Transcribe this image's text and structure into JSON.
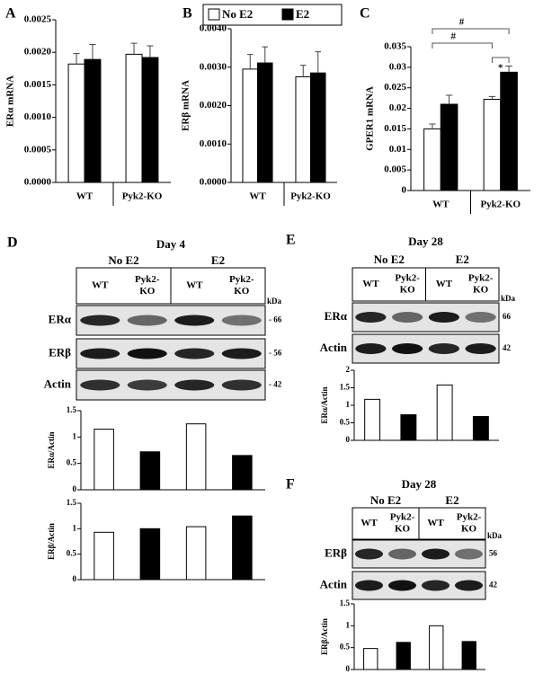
{
  "chart_data": [
    {
      "type": "bar",
      "panel": "A",
      "ylabel": "ERα mRNA",
      "categories": [
        "WT",
        "Pyk2-KO"
      ],
      "series": [
        {
          "color": "#ffffff",
          "values": [
            0.00182,
            0.00197
          ],
          "errors": [
            0.00016,
            0.00017
          ]
        },
        {
          "color": "#000000",
          "values": [
            0.00189,
            0.00192
          ],
          "errors": [
            0.00023,
            0.00018
          ]
        }
      ],
      "ylim": [
        0,
        0.0025
      ],
      "yticks": [
        {
          "value": 0,
          "label": "0.0000"
        },
        0.0005,
        {
          "value": 0.001,
          "label": "0.0010"
        },
        0.0015,
        {
          "value": 0.002,
          "label": "0.0020"
        },
        0.0025
      ]
    },
    {
      "type": "bar",
      "panel": "B",
      "ylabel": "ERβ mRNA",
      "categories": [
        "WT",
        "Pyk2-KO"
      ],
      "legend": "top",
      "series": [
        {
          "name": "No E2",
          "color": "#ffffff",
          "values": [
            0.00295,
            0.00275
          ],
          "errors": [
            0.00038,
            0.0003
          ]
        },
        {
          "name": "E2",
          "color": "#000000",
          "values": [
            0.00311,
            0.00285
          ],
          "errors": [
            0.00042,
            0.00055
          ]
        }
      ],
      "ylim": [
        0,
        0.004
      ],
      "yticks": [
        {
          "value": 0,
          "label": "0.0000"
        },
        {
          "value": 0.001,
          "label": "0.0010"
        },
        {
          "value": 0.002,
          "label": "0.0020"
        },
        {
          "value": 0.003,
          "label": "0.0030"
        },
        {
          "value": 0.004,
          "label": "0.0040"
        }
      ]
    },
    {
      "type": "bar",
      "panel": "C",
      "ylabel": "GPER1 mRNA",
      "categories": [
        "WT",
        "Pyk2-KO"
      ],
      "annotations": [
        "#",
        "#",
        "*"
      ],
      "series": [
        {
          "color": "#ffffff",
          "values": [
            0.015,
            0.0222
          ],
          "errors": [
            0.0012,
            0.0007
          ]
        },
        {
          "color": "#000000",
          "values": [
            0.021,
            0.0288
          ],
          "errors": [
            0.0022,
            0.0015
          ]
        }
      ],
      "ylim": [
        0,
        0.035
      ],
      "yticks": [
        0,
        0.005,
        0.01,
        0.015,
        0.02,
        0.025,
        0.03,
        0.035
      ]
    },
    {
      "type": "bar",
      "ylabel": "ERα/Actin",
      "categories": [
        null,
        null,
        null,
        null
      ],
      "values": [
        1.15,
        0.72,
        1.25,
        0.65
      ],
      "colors": [
        "#ffffff",
        "#000000",
        "#ffffff",
        "#000000"
      ],
      "ylim": [
        0,
        1.5
      ],
      "yticks": [
        0,
        0.5,
        1,
        1.5
      ]
    },
    {
      "type": "bar",
      "ylabel": "ERβ/Actin",
      "categories": [
        null,
        null,
        null,
        null
      ],
      "values": [
        0.93,
        1.0,
        1.04,
        1.25
      ],
      "colors": [
        "#ffffff",
        "#000000",
        "#ffffff",
        "#000000"
      ],
      "ylim": [
        0,
        1.5
      ],
      "yticks": [
        0,
        0.5,
        1,
        1.5
      ]
    },
    {
      "type": "bar",
      "ylabel": "ERα/Actin",
      "categories": [
        null,
        null,
        null,
        null
      ],
      "values": [
        1.17,
        0.73,
        1.58,
        0.68
      ],
      "colors": [
        "#ffffff",
        "#000000",
        "#ffffff",
        "#000000"
      ],
      "ylim": [
        0,
        2
      ],
      "yticks": [
        0,
        0.5,
        1,
        1.5,
        2
      ]
    },
    {
      "type": "bar",
      "ylabel": "ERβ/Actin",
      "categories": [
        null,
        null,
        null,
        null
      ],
      "values": [
        0.48,
        0.62,
        1.0,
        0.64
      ],
      "colors": [
        "#ffffff",
        "#000000",
        "#ffffff",
        "#000000"
      ],
      "ylim": [
        0,
        1.5
      ],
      "yticks": [
        0,
        0.5,
        1,
        1.5
      ]
    }
  ],
  "blots": [
    {
      "panel": "D",
      "day": "Day 4",
      "groups": [
        "No E2",
        "E2"
      ],
      "lanes": [
        [
          "WT"
        ],
        [
          "Pyk2-",
          "KO"
        ],
        [
          "WT"
        ],
        [
          "Pyk2-",
          "KO"
        ]
      ],
      "kda_unit": "kDa",
      "rows": [
        {
          "label": "ERα",
          "kda": "- 66"
        },
        {
          "label": "ERβ",
          "kda": "- 56"
        },
        {
          "label": "Actin",
          "kda": "- 42"
        }
      ]
    },
    {
      "panel": "E",
      "day": "Day 28",
      "groups": [
        "No E2",
        "E2"
      ],
      "lanes": [
        [
          "WT"
        ],
        [
          "Pyk2-",
          "KO"
        ],
        [
          "WT"
        ],
        [
          "Pyk2-",
          "KO"
        ]
      ],
      "kda_unit": "kDa",
      "rows": [
        {
          "label": "ERα",
          "kda": "66"
        },
        {
          "label": "Actin",
          "kda": "42"
        }
      ]
    },
    {
      "panel": "F",
      "day": "Day 28",
      "groups": [
        "No E2",
        "E2"
      ],
      "lanes": [
        [
          "WT"
        ],
        [
          "Pyk2-",
          "KO"
        ],
        [
          "WT"
        ],
        [
          "Pyk2-",
          "KO"
        ]
      ],
      "kda_unit": "kDa",
      "rows": [
        {
          "label": "ERβ",
          "kda": "56"
        },
        {
          "label": "Actin",
          "kda": "42"
        }
      ]
    }
  ]
}
